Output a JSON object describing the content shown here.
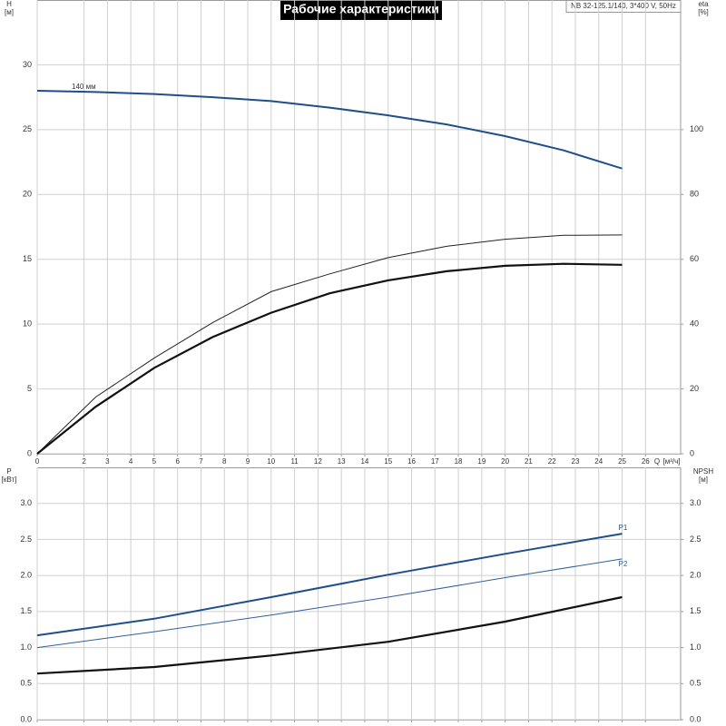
{
  "chart_data": [
    {
      "type": "line",
      "title": "Рабочие характеристики",
      "legend_text": "NB 32-125.1/140, 3*400 V, 50Hz",
      "annotation": "140 мм",
      "y_label": "H",
      "y_unit": "[м]",
      "y2_label": "eta",
      "y2_unit": "[%]",
      "x_label": "Q",
      "x_unit": "[м³/ч]",
      "x": [
        0,
        2.5,
        5,
        7.5,
        10,
        12.5,
        15,
        17.5,
        20,
        22.5,
        25
      ],
      "xlim": [
        0,
        27.5
      ],
      "xticks": [
        0,
        2,
        3,
        4,
        5,
        6,
        7,
        8,
        9,
        10,
        11,
        12,
        13,
        14,
        15,
        16,
        17,
        18,
        19,
        20,
        21,
        22,
        23,
        24,
        25,
        26
      ],
      "ylim": [
        0,
        35
      ],
      "yticks": [
        0,
        5,
        10,
        15,
        20,
        25,
        30
      ],
      "y2lim": [
        0,
        140
      ],
      "y2ticks": [
        0,
        20,
        40,
        60,
        80,
        100
      ],
      "grid": true,
      "series": [
        {
          "color": "#1f4e8c",
          "line_width": 2,
          "values": [
            28.0,
            27.9,
            27.75,
            27.5,
            27.2,
            26.7,
            26.1,
            25.4,
            24.5,
            23.4,
            22.0
          ]
        },
        {
          "color": "#222222",
          "line_width": 1,
          "axis": "y2",
          "values": [
            0,
            17.5,
            29.5,
            40.5,
            50,
            55.5,
            60.5,
            64,
            66.2,
            67.4,
            67.5
          ]
        },
        {
          "color": "#111111",
          "line_width": 2.2,
          "axis": "y2",
          "values": [
            0,
            14.5,
            26.5,
            36,
            43.5,
            49.5,
            53.5,
            56.3,
            58,
            58.6,
            58.3
          ]
        }
      ]
    },
    {
      "type": "line",
      "y_label": "P",
      "y_unit": "[кВт]",
      "y2_label": "NPSH",
      "y2_unit": "[м]",
      "x": [
        0,
        5,
        10,
        15,
        20,
        25
      ],
      "xlim": [
        0,
        27.5
      ],
      "xticks": [
        0,
        2,
        3,
        4,
        5,
        6,
        7,
        8,
        9,
        10,
        11,
        12,
        13,
        14,
        15,
        16,
        17,
        18,
        19,
        20,
        21,
        22,
        23,
        24,
        25,
        26
      ],
      "x_tick_labels": false,
      "ylim": [
        0,
        3.5
      ],
      "yticks": [
        {
          "value": 0,
          "label": "0.0"
        },
        {
          "value": 0.5,
          "label": "0.5"
        },
        {
          "value": 1,
          "label": "1.0"
        },
        {
          "value": 1.5,
          "label": "1.5"
        },
        {
          "value": 2,
          "label": "2.0"
        },
        {
          "value": 2.5,
          "label": "2.5"
        },
        {
          "value": 3,
          "label": "3.0"
        }
      ],
      "y2lim": [
        0,
        3.5
      ],
      "y2ticks": [
        {
          "value": 0,
          "label": "0.0"
        },
        {
          "value": 0.5,
          "label": "0.5"
        },
        {
          "value": 1,
          "label": "1.0"
        },
        {
          "value": 1.5,
          "label": "1.5"
        },
        {
          "value": 2,
          "label": "2.0"
        },
        {
          "value": 2.5,
          "label": "2.5"
        },
        {
          "value": 3,
          "label": "3.0"
        }
      ],
      "grid": true,
      "series": [
        {
          "name": "P1",
          "color": "#1f4e8c",
          "line_width": 2,
          "values": [
            1.17,
            1.4,
            1.7,
            2.01,
            2.3,
            2.58
          ]
        },
        {
          "name": "P2",
          "color": "#2f5f9a",
          "line_width": 1,
          "values": [
            1.0,
            1.22,
            1.45,
            1.7,
            1.97,
            2.23
          ]
        },
        {
          "color": "#111111",
          "line_width": 2.2,
          "axis": "y2",
          "values": [
            0.64,
            0.73,
            0.89,
            1.08,
            1.36,
            1.7
          ]
        }
      ]
    }
  ]
}
